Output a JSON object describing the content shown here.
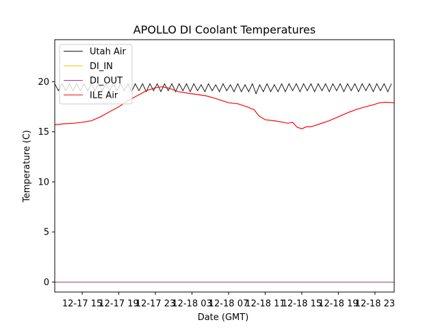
{
  "chart_data": {
    "type": "line",
    "title": "APOLLO DI Coolant Temperatures",
    "xlabel": "Date (GMT)",
    "ylabel": "Temperature (C)",
    "x_units": "hours since 12-17 00:00 GMT",
    "xlim": [
      12,
      49.1
    ],
    "ylim": [
      -1.0,
      24.2
    ],
    "yticks": [
      0,
      5,
      10,
      15,
      20
    ],
    "xticks": [
      15,
      19,
      23,
      27,
      31,
      35,
      39,
      43,
      47
    ],
    "xtick_labels": [
      "12-17 15",
      "12-17 19",
      "12-17 23",
      "12-18 03",
      "12-18 07",
      "12-18 11",
      "12-18 15",
      "12-18 19",
      "12-18 23"
    ],
    "legend_placement": "top-left",
    "grid": false,
    "series": [
      {
        "name": "Utah Air",
        "color": "#000000",
        "x": [
          12,
          12.4,
          12.8,
          13.2,
          13.6,
          14,
          14.4,
          14.8,
          15.2,
          15.6,
          16,
          16.4,
          16.8,
          17.2,
          17.6,
          18,
          18.4,
          18.8,
          19.2,
          19.6,
          20,
          20.4,
          20.8,
          21.2,
          21.6,
          22,
          22.4,
          22.8,
          23.2,
          23.6,
          24,
          24.4,
          24.8,
          25.2,
          25.6,
          26,
          26.4,
          26.8,
          27.2,
          27.6,
          28,
          28.4,
          28.8,
          29.2,
          29.6,
          30,
          30.4,
          30.8,
          31.2,
          31.6,
          32,
          32.4,
          32.8,
          33.2,
          33.6,
          34,
          34.4,
          34.8,
          35.2,
          35.6,
          36,
          36.4,
          36.8,
          37.2,
          37.6,
          38,
          38.4,
          38.8,
          39.2,
          39.6,
          40,
          40.4,
          40.8,
          41.2,
          41.6,
          42,
          42.4,
          42.8,
          43.2,
          43.6,
          44,
          44.4,
          44.8,
          45.2,
          45.6,
          46,
          46.4,
          46.8,
          47.2,
          47.6,
          48,
          48.4,
          48.8
        ],
        "y": [
          19.8,
          19.1,
          19.8,
          19.1,
          19.8,
          19.1,
          19.8,
          19.1,
          19.8,
          19.1,
          19.8,
          19.1,
          19.8,
          19.1,
          19.8,
          19.1,
          19.8,
          19.1,
          19.8,
          19.1,
          19.8,
          19.0,
          19.8,
          19.1,
          19.8,
          19.0,
          19.8,
          19.1,
          19.8,
          19.0,
          19.8,
          19.1,
          19.8,
          19.0,
          19.8,
          19.1,
          19.8,
          19.0,
          19.8,
          19.1,
          19.7,
          19.0,
          19.8,
          19.1,
          19.7,
          19.0,
          19.8,
          19.1,
          19.7,
          19.0,
          19.8,
          19.0,
          19.7,
          19.0,
          19.8,
          18.8,
          19.7,
          19.0,
          19.8,
          19.0,
          19.7,
          19.0,
          19.8,
          19.0,
          19.8,
          19.1,
          19.8,
          19.0,
          19.8,
          19.1,
          19.8,
          19.0,
          19.8,
          19.1,
          19.8,
          19.0,
          19.8,
          19.1,
          19.8,
          19.0,
          19.8,
          19.1,
          19.8,
          19.0,
          19.8,
          19.1,
          19.8,
          19.0,
          19.8,
          19.1,
          19.8,
          19.0,
          19.8
        ]
      },
      {
        "name": "DI_IN",
        "color": "#ffbf00",
        "x": [
          12,
          49.1
        ],
        "y": [
          0,
          0
        ]
      },
      {
        "name": "DI_OUT",
        "color": "#a0207f",
        "x": [
          12,
          49.1
        ],
        "y": [
          0,
          0
        ]
      },
      {
        "name": "ILE Air",
        "color": "#ff0000",
        "x": [
          12,
          13,
          14,
          15,
          16,
          17,
          18,
          19,
          20,
          21,
          22,
          23,
          23.7,
          24.5,
          25.5,
          27,
          28.5,
          29.5,
          31,
          32,
          33,
          33.8,
          34.3,
          35,
          36,
          37,
          37.5,
          38,
          38.5,
          39,
          39.5,
          40,
          41,
          42,
          43,
          44,
          45,
          46,
          46.8,
          47.5,
          48.2,
          49.1
        ],
        "y": [
          15.7,
          15.8,
          15.85,
          15.95,
          16.1,
          16.5,
          17.0,
          17.5,
          18.1,
          18.6,
          19.1,
          19.4,
          19.5,
          19.35,
          19.0,
          18.8,
          18.6,
          18.35,
          17.9,
          17.8,
          17.5,
          17.2,
          16.6,
          16.2,
          16.1,
          15.95,
          15.85,
          15.95,
          15.45,
          15.3,
          15.5,
          15.5,
          15.8,
          16.1,
          16.5,
          16.9,
          17.25,
          17.5,
          17.7,
          17.9,
          17.95,
          17.9
        ]
      }
    ]
  }
}
